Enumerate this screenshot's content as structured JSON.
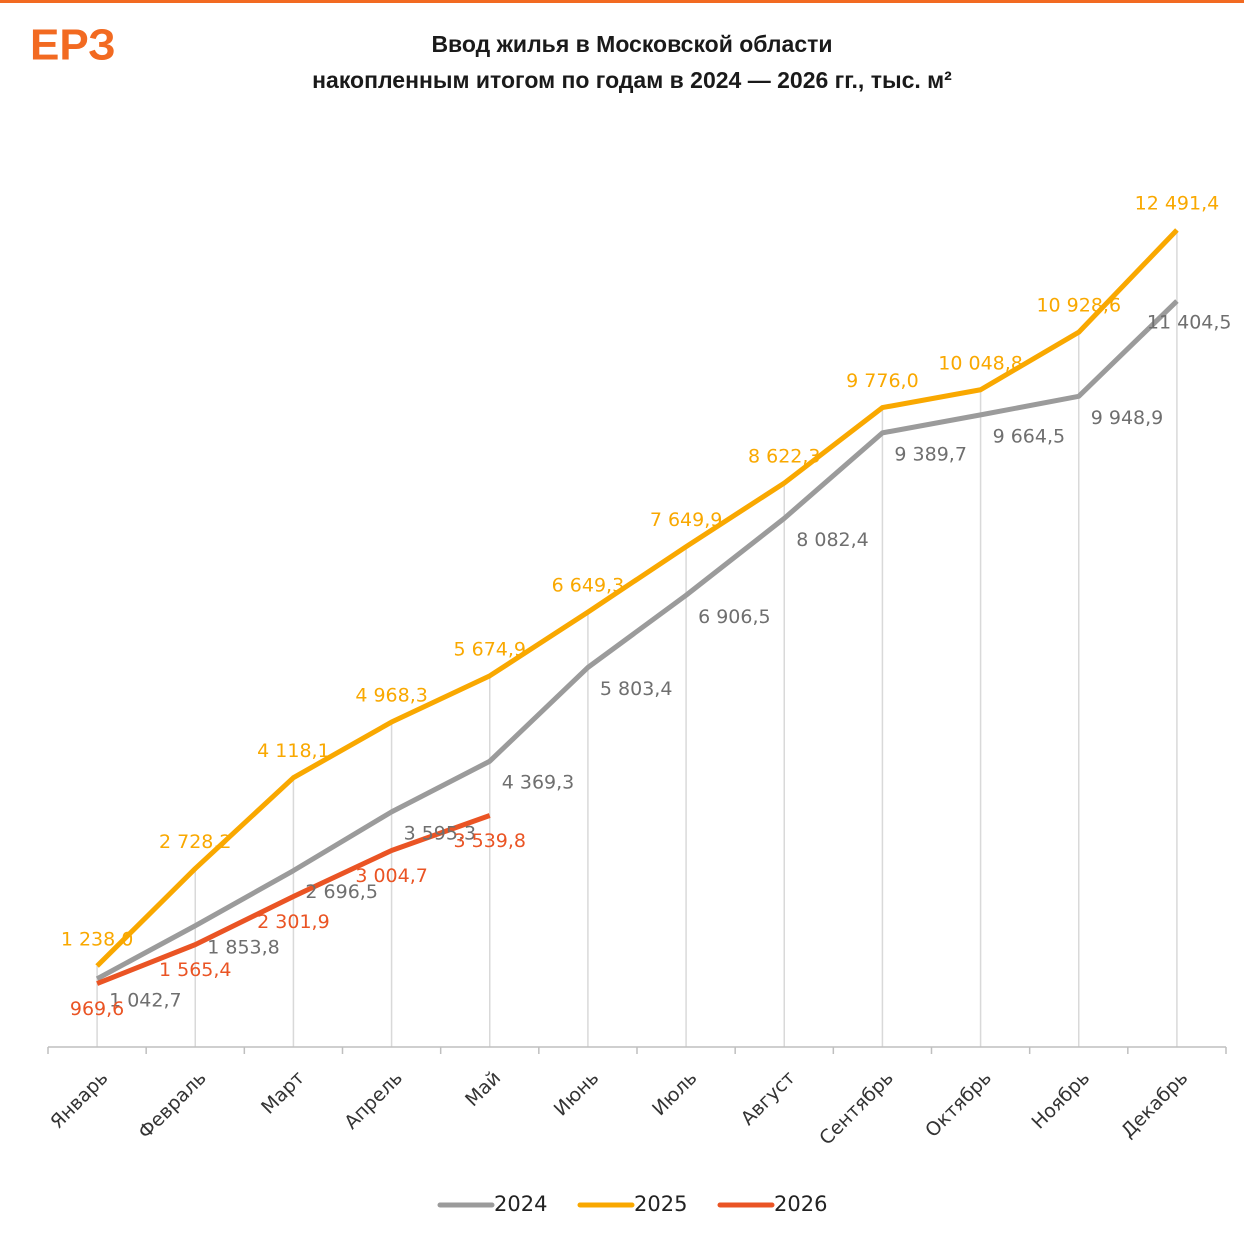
{
  "logo": "ЕРЗ",
  "chart_data": {
    "type": "line",
    "title": [
      "Ввод жилья в Московской области",
      "накопленным итогом по годам в 2024 — 2026 гг., тыс. м²"
    ],
    "categories": [
      "Январь",
      "Февраль",
      "Март",
      "Апрель",
      "Май",
      "Июнь",
      "Июль",
      "Август",
      "Сентябрь",
      "Октябрь",
      "Ноябрь",
      "Декабрь"
    ],
    "series": [
      {
        "name": "2024",
        "color": "#9b9b9b",
        "values": [
          1042.7,
          1853.8,
          2696.5,
          3595.3,
          4369.3,
          5803.4,
          6906.5,
          8082.4,
          9389.7,
          9664.5,
          9948.9,
          11404.5
        ],
        "value_labels": [
          "1 042,7",
          "1 853,8",
          "2 696,5",
          "3 595,3",
          "4 369,3",
          "5 803,4",
          "6 906,5",
          "8 082,4",
          "9 389,7",
          "9 664,5",
          "9 948,9",
          "11 404,5"
        ]
      },
      {
        "name": "2025",
        "color": "#f9a800",
        "values": [
          1238.0,
          2728.2,
          4118.1,
          4968.3,
          5674.9,
          6649.3,
          7649.9,
          8622.3,
          9776.0,
          10048.8,
          10928.6,
          12491.4
        ],
        "value_labels": [
          "1 238,0",
          "2 728,2",
          "4 118,1",
          "4 968,3",
          "5 674,9",
          "6 649,3",
          "7 649,9",
          "8 622,3",
          "9 776,0",
          "10 048,8",
          "10 928,6",
          "12 491,4"
        ]
      },
      {
        "name": "2026",
        "color": "#ea5424",
        "values": [
          969.6,
          1565.4,
          2301.9,
          3004.7,
          3539.8,
          null,
          null,
          null,
          null,
          null,
          null,
          null
        ],
        "value_labels": [
          "969,6",
          "1 565,4",
          "2 301,9",
          "3 004,7",
          "3 539,8",
          null,
          null,
          null,
          null,
          null,
          null,
          null
        ]
      }
    ]
  }
}
